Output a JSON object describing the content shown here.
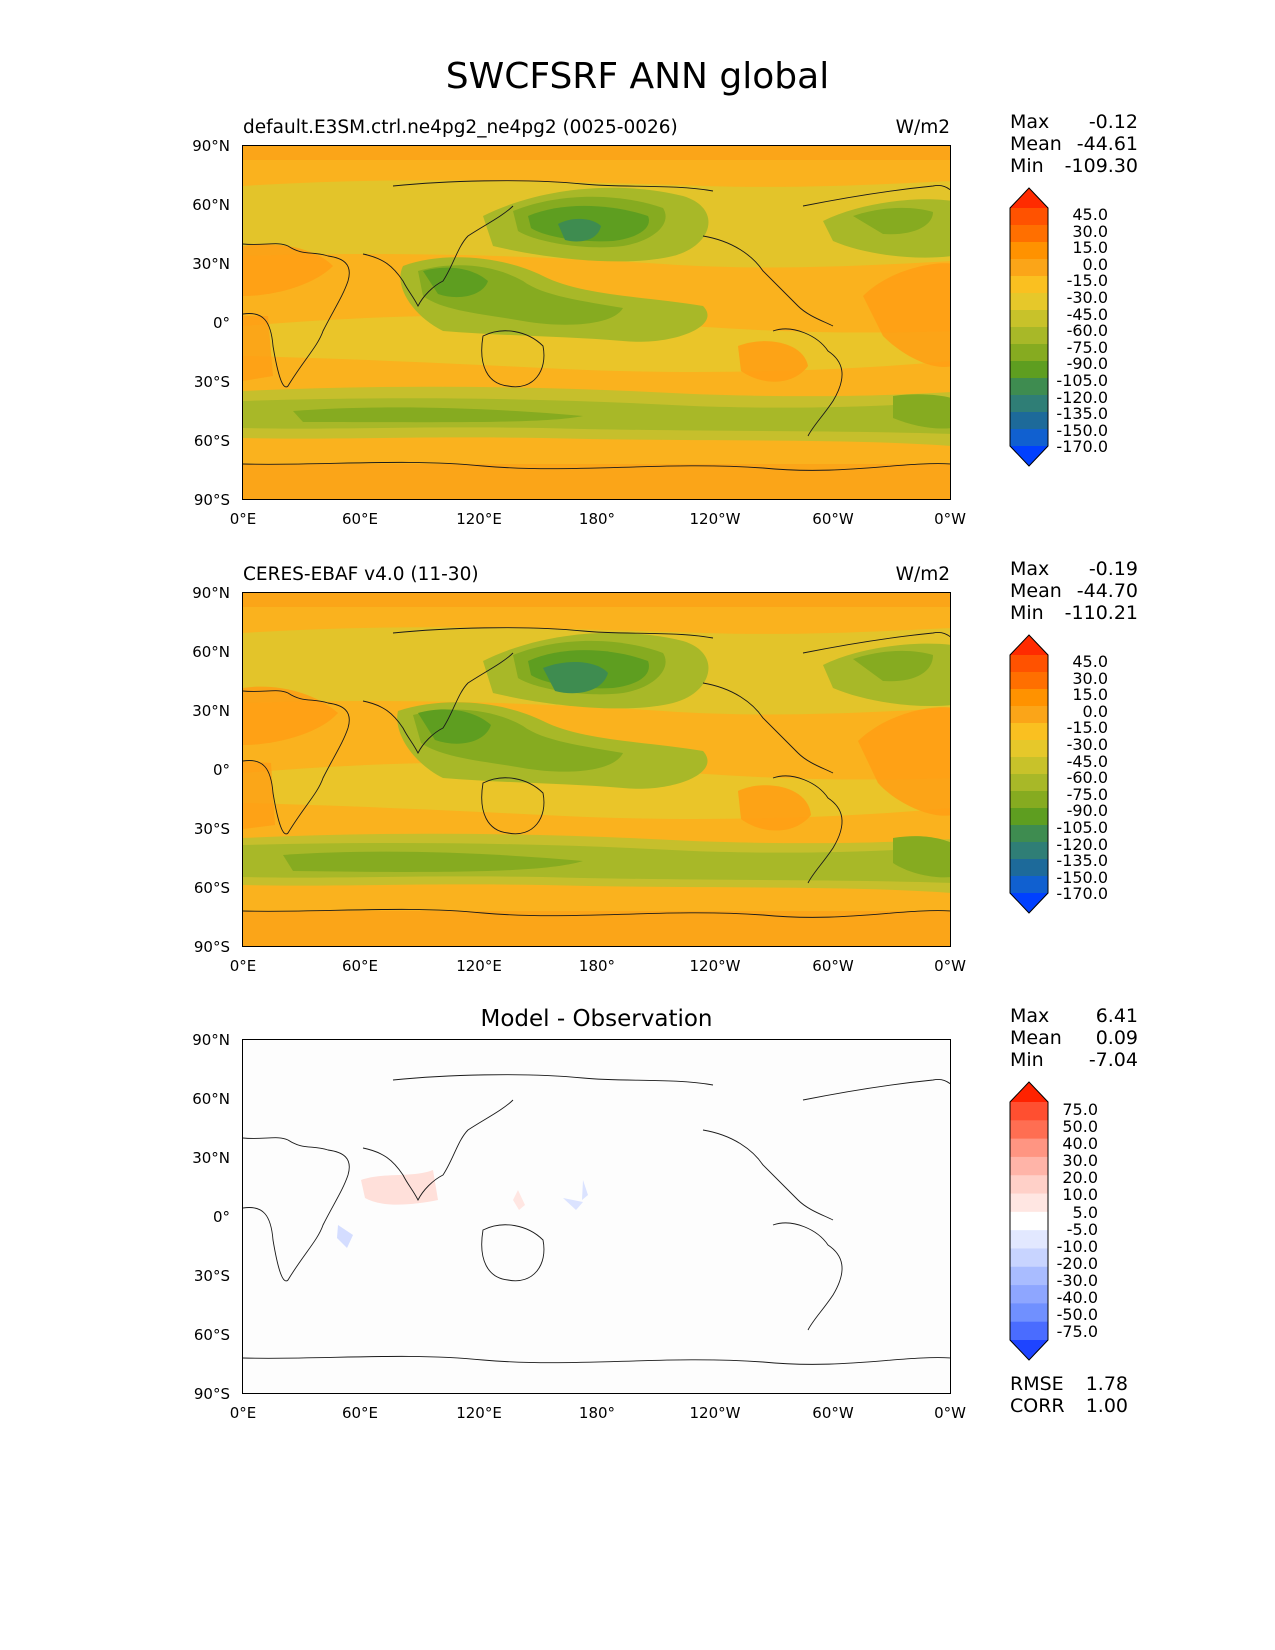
{
  "title": "SWCFSRF ANN global",
  "axes": {
    "yticks": [
      "90°N",
      "60°N",
      "30°N",
      "0°",
      "30°S",
      "60°S",
      "90°S"
    ],
    "xticks": [
      "0°E",
      "60°E",
      "120°E",
      "180°",
      "120°W",
      "60°W",
      "0°W"
    ]
  },
  "panels": [
    {
      "label": "default.E3SM.ctrl.ne4pg2_ne4pg2 (0025-0026)",
      "units": "W/m2",
      "title": "",
      "stats": [
        {
          "name": "Max",
          "value": "-0.12"
        },
        {
          "name": "Mean",
          "value": "-44.61"
        },
        {
          "name": "Min",
          "value": "-109.30"
        }
      ],
      "colorbar": [
        "45.0",
        "30.0",
        "15.0",
        "0.0",
        "-15.0",
        "-30.0",
        "-45.0",
        "-60.0",
        "-75.0",
        "-90.0",
        "-105.0",
        "-120.0",
        "-135.0",
        "-150.0",
        "-170.0"
      ]
    },
    {
      "label": "CERES-EBAF v4.0 (11-30)",
      "units": "W/m2",
      "title": "",
      "stats": [
        {
          "name": "Max",
          "value": "-0.19"
        },
        {
          "name": "Mean",
          "value": "-44.70"
        },
        {
          "name": "Min",
          "value": "-110.21"
        }
      ],
      "colorbar": [
        "45.0",
        "30.0",
        "15.0",
        "0.0",
        "-15.0",
        "-30.0",
        "-45.0",
        "-60.0",
        "-75.0",
        "-90.0",
        "-105.0",
        "-120.0",
        "-135.0",
        "-150.0",
        "-170.0"
      ]
    },
    {
      "label": "",
      "units": "",
      "title": "Model - Observation",
      "stats": [
        {
          "name": "Max",
          "value": "6.41"
        },
        {
          "name": "Mean",
          "value": "0.09"
        },
        {
          "name": "Min",
          "value": "-7.04"
        }
      ],
      "colorbar": [
        "75.0",
        "50.0",
        "40.0",
        "30.0",
        "20.0",
        "10.0",
        "5.0",
        "-5.0",
        "-10.0",
        "-20.0",
        "-30.0",
        "-40.0",
        "-50.0",
        "-75.0"
      ],
      "metrics": [
        {
          "name": "RMSE",
          "value": "1.78"
        },
        {
          "name": "CORR",
          "value": "1.00"
        }
      ]
    }
  ],
  "colors": {
    "field_cmap": [
      "#ff2b00",
      "#ff5200",
      "#ff6f00",
      "#ff9200",
      "#fba518",
      "#fac020",
      "#e6c82a",
      "#c8c22a",
      "#a8b828",
      "#86ab20",
      "#5e9e20",
      "#3e8c50",
      "#2f7e76",
      "#1d6a9a",
      "#1060d0",
      "#0040ff"
    ],
    "diff_cmap": [
      "#ff2200",
      "#ff4f30",
      "#ff6e52",
      "#ff9582",
      "#ffb4a8",
      "#ffd0c8",
      "#ffe6e2",
      "#ffffff",
      "#e2e8ff",
      "#c8d4ff",
      "#a9bcff",
      "#8ea6ff",
      "#7090ff",
      "#4a6cff",
      "#1e44ff"
    ]
  }
}
